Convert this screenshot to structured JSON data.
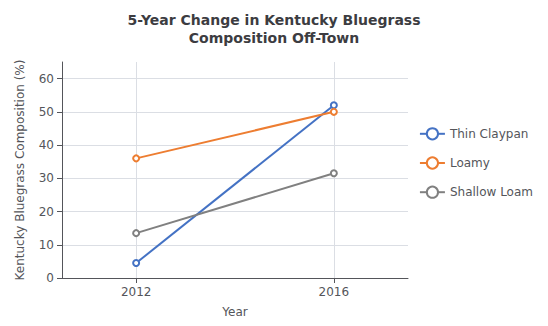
{
  "chart_data": {
    "type": "line",
    "title": "5-Year Change in Kentucky Bluegrass\nComposition Off-Town",
    "x_label": "Year",
    "y_label": "Kentucky Bluegrass Composition (%)",
    "x": [
      2012,
      2016
    ],
    "series": [
      {
        "name": "Thin Claypan",
        "color": "#4472C4",
        "values": [
          4.5,
          52
        ]
      },
      {
        "name": "Loamy",
        "color": "#ED7D31",
        "values": [
          36,
          50
        ]
      },
      {
        "name": "Shallow Loam",
        "color": "#808080",
        "values": [
          13.5,
          31.5
        ]
      }
    ],
    "xlim": [
      2010.5,
      2017.5
    ],
    "xticks": [
      2012,
      2016
    ],
    "ylim": [
      0,
      65
    ],
    "yticks": [
      0,
      10,
      20,
      30,
      40,
      50,
      60
    ],
    "grid": true,
    "legend": "right"
  }
}
